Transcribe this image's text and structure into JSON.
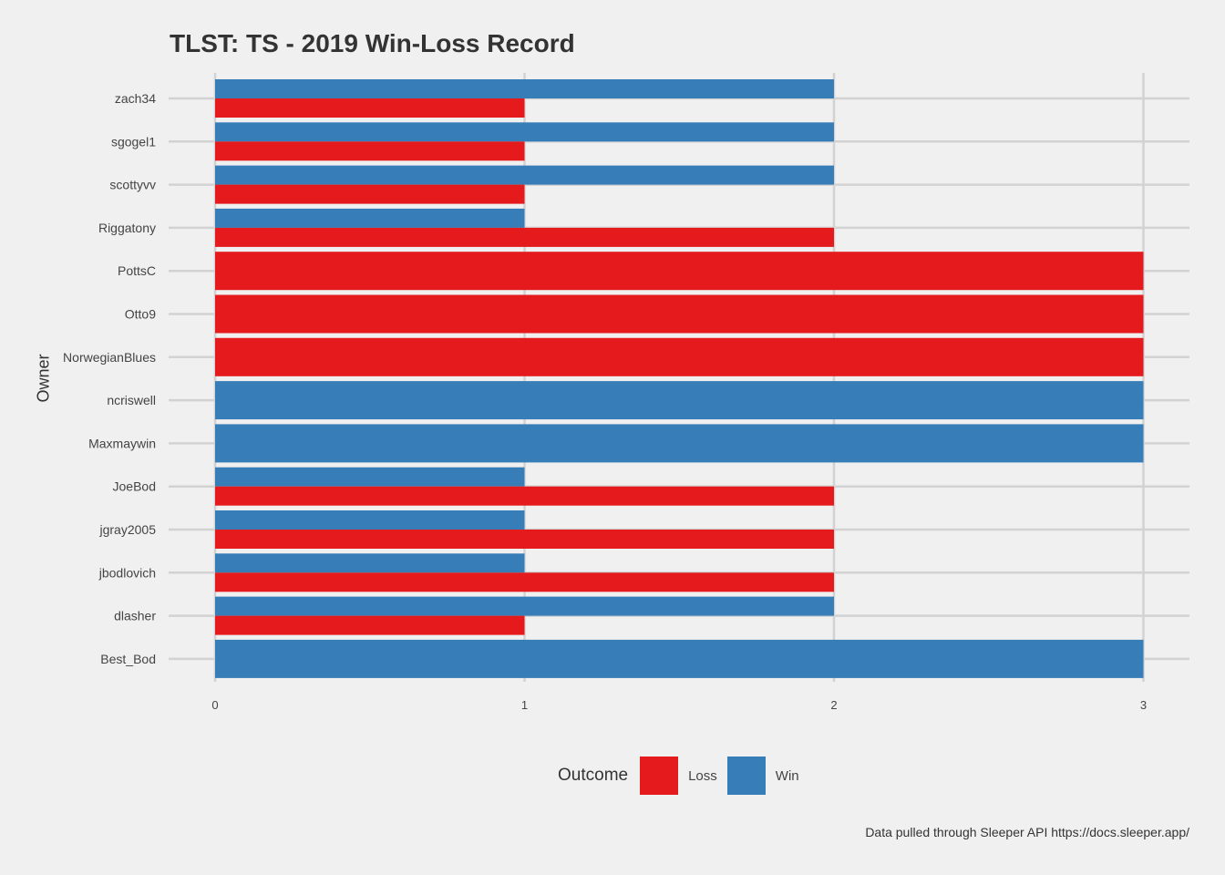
{
  "colors": {
    "background": "#f0f0f0",
    "gridline": "#d2d2d2",
    "loss": "#e41a1c",
    "win": "#377eb8"
  },
  "caption": "Data pulled through Sleeper API https://docs.sleeper.app/",
  "legend": {
    "title": "Outcome",
    "items": [
      {
        "label": "Loss",
        "color": "#e41a1c"
      },
      {
        "label": "Win",
        "color": "#377eb8"
      }
    ]
  },
  "chart_data": {
    "type": "bar",
    "orientation": "horizontal",
    "title": "TLST: TS - 2019 Win-Loss Record",
    "xlabel": "",
    "ylabel": "Owner",
    "xlim": [
      0,
      3
    ],
    "x_ticks": [
      "0",
      "1",
      "2",
      "3"
    ],
    "grid": true,
    "legend_position": "bottom",
    "categories": [
      "zach34",
      "sgogel1",
      "scottyvv",
      "Riggatony",
      "PottsC",
      "Otto9",
      "NorwegianBlues",
      "ncriswell",
      "Maxmaywin",
      "JoeBod",
      "jgray2005",
      "jbodlovich",
      "dlasher",
      "Best_Bod"
    ],
    "series": [
      {
        "name": "Loss",
        "values": [
          1,
          1,
          1,
          2,
          3,
          3,
          3,
          0,
          0,
          2,
          2,
          2,
          1,
          0
        ]
      },
      {
        "name": "Win",
        "values": [
          2,
          2,
          2,
          1,
          0,
          0,
          0,
          3,
          3,
          1,
          1,
          1,
          2,
          3
        ]
      }
    ]
  }
}
